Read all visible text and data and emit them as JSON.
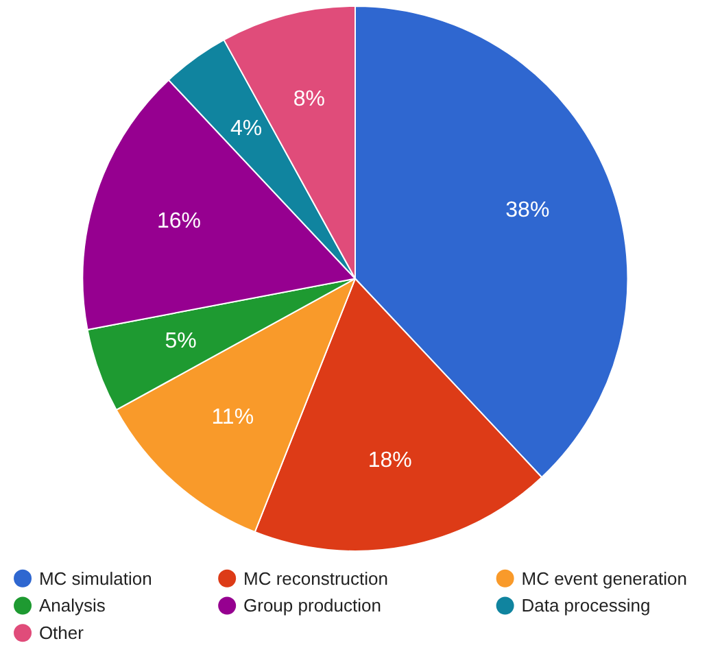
{
  "chart_data": {
    "type": "pie",
    "categories": [
      "MC simulation",
      "MC reconstruction",
      "MC event generation",
      "Analysis",
      "Group production",
      "Data processing",
      "Other"
    ],
    "values": [
      38,
      18,
      11,
      5,
      16,
      4,
      8
    ],
    "colors": [
      "#2f67d0",
      "#dd3b17",
      "#f99a2a",
      "#1e9a31",
      "#960090",
      "#10849f",
      "#e04c7a"
    ],
    "value_labels": [
      "38%",
      "18%",
      "11%",
      "5%",
      "16%",
      "4%",
      "8%"
    ],
    "legend": "bottom"
  }
}
